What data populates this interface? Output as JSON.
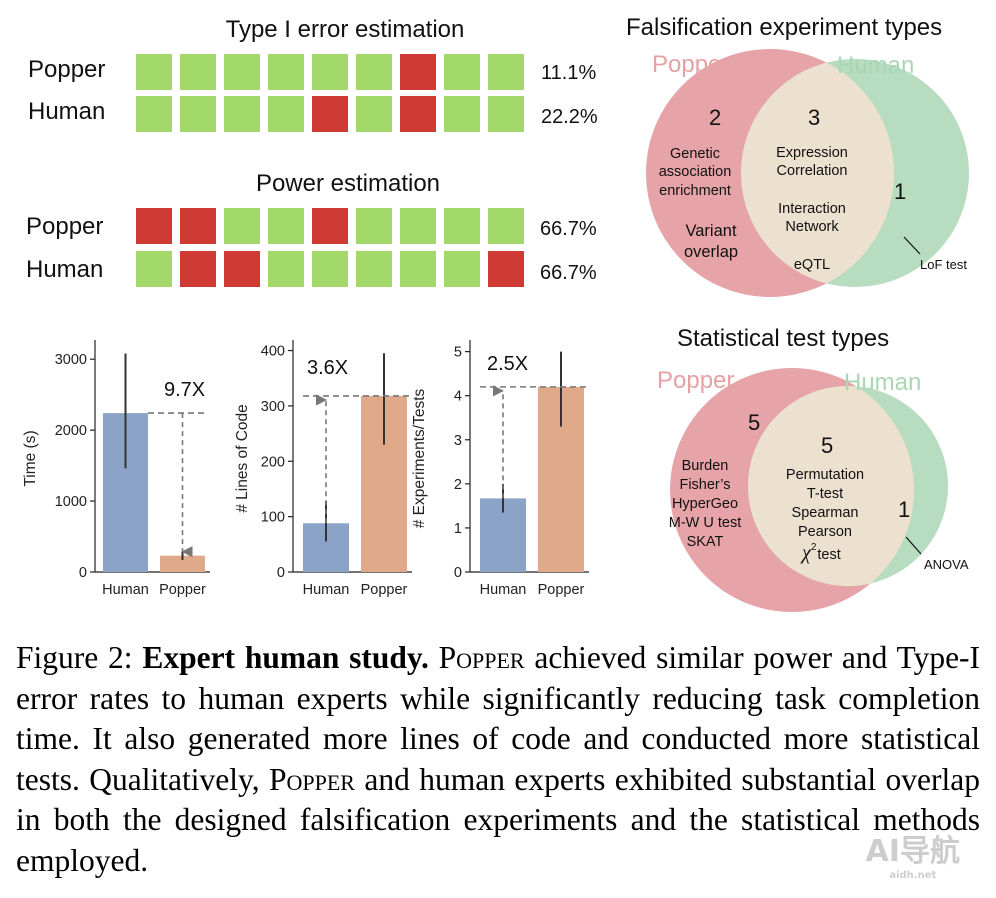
{
  "type1": {
    "title": "Type I error estimation",
    "rows": [
      {
        "label": "Popper",
        "cells": [
          "pass",
          "pass",
          "pass",
          "pass",
          "pass",
          "pass",
          "fail",
          "pass",
          "pass"
        ],
        "value": "11.1%"
      },
      {
        "label": "Human",
        "cells": [
          "pass",
          "pass",
          "pass",
          "pass",
          "fail",
          "pass",
          "fail",
          "pass",
          "pass"
        ],
        "value": "22.2%"
      }
    ]
  },
  "power": {
    "title": "Power estimation",
    "rows": [
      {
        "label": "Popper",
        "cells": [
          "fail",
          "fail",
          "pass",
          "pass",
          "fail",
          "pass",
          "pass",
          "pass",
          "pass"
        ],
        "value": "66.7%"
      },
      {
        "label": "Human",
        "cells": [
          "pass",
          "fail",
          "fail",
          "pass",
          "pass",
          "pass",
          "pass",
          "pass",
          "fail"
        ],
        "value": "66.7%"
      }
    ]
  },
  "colors": {
    "pass": "#a3d96b",
    "fail": "#d03a34",
    "human_bar": "#8ca3c8",
    "popper_bar": "#dfa98a",
    "popper_circle": "#e7a4a8",
    "human_circle": "#b7dcc0",
    "overlap": "#ece0cf"
  },
  "chart_data": [
    {
      "type": "bar",
      "categories": [
        "Human",
        "Popper"
      ],
      "values": [
        2240,
        230
      ],
      "errors": [
        [
          1460,
          3080
        ],
        [
          170,
          290
        ]
      ],
      "ylabel": "Time (s)",
      "ylim": [
        0,
        3200
      ],
      "yticks": [
        "0",
        "1000",
        "2000",
        "3000"
      ],
      "annotation": "9.7X"
    },
    {
      "type": "bar",
      "categories": [
        "Human",
        "Popper"
      ],
      "values": [
        88,
        318
      ],
      "errors": [
        [
          55,
          128
        ],
        [
          230,
          395
        ]
      ],
      "ylabel": "# Lines of Code",
      "ylim": [
        0,
        410
      ],
      "yticks": [
        "0",
        "100",
        "200",
        "300",
        "400"
      ],
      "annotation": "3.6X"
    },
    {
      "type": "bar",
      "categories": [
        "Human",
        "Popper"
      ],
      "values": [
        1.67,
        4.2
      ],
      "errors": [
        [
          1.35,
          2.0
        ],
        [
          3.3,
          5.0
        ]
      ],
      "ylabel": "# Experiments/Tests",
      "ylim": [
        0,
        5.15
      ],
      "yticks": [
        "0",
        "1",
        "2",
        "3",
        "4",
        "5"
      ],
      "annotation": "2.5X"
    }
  ],
  "venn1": {
    "title": "Falsification experiment types",
    "left_label": "Popper",
    "right_label": "Human",
    "left_count": "2",
    "mid_count": "3",
    "right_count": "1",
    "left_items": [
      "Genetic",
      "association",
      "enrichment"
    ],
    "left_items2": [
      "Variant",
      "overlap"
    ],
    "mid_items": [
      "Expression",
      "Correlation",
      "Interaction",
      "Network",
      "eQTL"
    ],
    "right_item": "LoF test"
  },
  "venn2": {
    "title": "Statistical test types",
    "left_label": "Popper",
    "right_label": "Human",
    "left_count": "5",
    "mid_count": "5",
    "right_count": "1",
    "left_items": [
      "Burden",
      "Fisher’s",
      "HyperGeo",
      "M-W U test",
      "SKAT"
    ],
    "mid_items": [
      "Permutation",
      "T-test",
      "Spearman",
      "Pearson",
      "χ",
      "2",
      "test"
    ],
    "right_item": "ANOVA"
  },
  "caption": {
    "label": "Figure 2:",
    "bold": "Expert human study.",
    "popper": "Popper",
    "part1": " achieved similar power and Type-I error rates to human experts while significantly reducing task completion time. It also generated more lines of code and conducted more statistical tests. Qualitatively, ",
    "part2": " and human experts exhibited substantial overlap in both the designed falsification experiments and the statistical methods employed."
  },
  "watermark": {
    "text": "AI导航",
    "sub": "aidh.net"
  }
}
